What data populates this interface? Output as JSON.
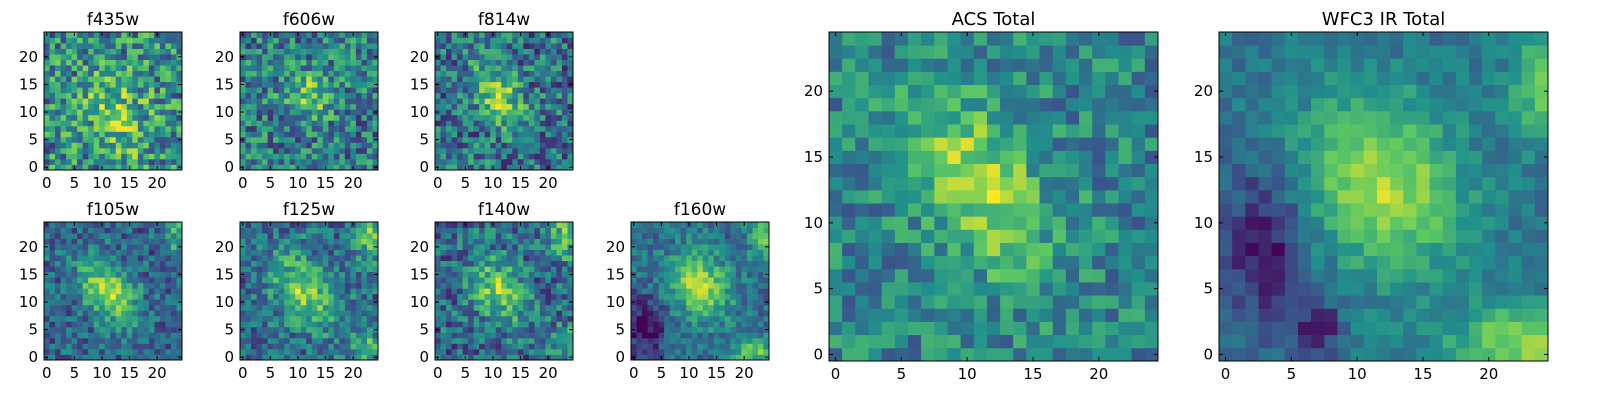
{
  "figure_title": "",
  "colormap": "viridis",
  "colormap_stops": [
    "#440154",
    "#3b528b",
    "#21918c",
    "#5ec962",
    "#fde725"
  ],
  "chart_data": [
    {
      "type": "heatmap",
      "title": "f435w",
      "grid_size": 25,
      "xlim": [
        0,
        24
      ],
      "ylim": [
        0,
        24
      ],
      "xticks": [
        0,
        5,
        10,
        15,
        20
      ],
      "yticks": [
        0,
        5,
        10,
        15,
        20
      ],
      "noise": 0.32,
      "features": [
        {
          "center": [
            12,
            11
          ],
          "sigma": [
            4.5,
            4.5
          ],
          "amp": 0.25
        },
        {
          "center": [
            14,
            4
          ],
          "sigma": [
            3,
            3
          ],
          "amp": 0.15
        }
      ],
      "base": 0.48,
      "xlabel": "",
      "ylabel": ""
    },
    {
      "type": "heatmap",
      "title": "f606w",
      "grid_size": 25,
      "xlim": [
        0,
        24
      ],
      "ylim": [
        0,
        24
      ],
      "xticks": [
        0,
        5,
        10,
        15,
        20
      ],
      "yticks": [
        0,
        5,
        10,
        15,
        20
      ],
      "noise": 0.28,
      "features": [
        {
          "center": [
            12,
            13
          ],
          "sigma": [
            3,
            3
          ],
          "amp": 0.35
        }
      ],
      "base": 0.42,
      "xlabel": "",
      "ylabel": ""
    },
    {
      "type": "heatmap",
      "title": "f814w",
      "grid_size": 25,
      "xlim": [
        0,
        24
      ],
      "ylim": [
        0,
        24
      ],
      "xticks": [
        0,
        5,
        10,
        15,
        20
      ],
      "yticks": [
        0,
        5,
        10,
        15,
        20
      ],
      "noise": 0.28,
      "features": [
        {
          "center": [
            11,
            13
          ],
          "sigma": [
            2.5,
            4.5
          ],
          "amp": 0.45,
          "tilt": 0.5
        }
      ],
      "base": 0.38,
      "xlabel": "",
      "ylabel": ""
    },
    {
      "type": "heatmap",
      "title": "f105w",
      "grid_size": 25,
      "xlim": [
        0,
        24
      ],
      "ylim": [
        0,
        24
      ],
      "xticks": [
        0,
        5,
        10,
        15,
        20
      ],
      "yticks": [
        0,
        5,
        10,
        15,
        20
      ],
      "noise": 0.2,
      "features": [
        {
          "center": [
            11,
            12
          ],
          "sigma": [
            3,
            5
          ],
          "amp": 0.5,
          "tilt": 0.6
        },
        {
          "center": [
            24,
            22
          ],
          "sigma": [
            1.5,
            3
          ],
          "amp": 0.3
        }
      ],
      "base": 0.33,
      "xlabel": "",
      "ylabel": ""
    },
    {
      "type": "heatmap",
      "title": "f125w",
      "grid_size": 25,
      "xlim": [
        0,
        24
      ],
      "ylim": [
        0,
        24
      ],
      "xticks": [
        0,
        5,
        10,
        15,
        20
      ],
      "yticks": [
        0,
        5,
        10,
        15,
        20
      ],
      "noise": 0.22,
      "features": [
        {
          "center": [
            11,
            12
          ],
          "sigma": [
            3.5,
            5
          ],
          "amp": 0.45,
          "tilt": 0.6
        },
        {
          "center": [
            23,
            22
          ],
          "sigma": [
            2,
            3
          ],
          "amp": 0.4
        },
        {
          "center": [
            22,
            2
          ],
          "sigma": [
            2,
            2
          ],
          "amp": 0.35
        }
      ],
      "base": 0.35,
      "xlabel": "",
      "ylabel": ""
    },
    {
      "type": "heatmap",
      "title": "f140w",
      "grid_size": 25,
      "xlim": [
        0,
        24
      ],
      "ylim": [
        0,
        24
      ],
      "xticks": [
        0,
        5,
        10,
        15,
        20
      ],
      "yticks": [
        0,
        5,
        10,
        15,
        20
      ],
      "noise": 0.24,
      "features": [
        {
          "center": [
            11,
            12
          ],
          "sigma": [
            3,
            4.5
          ],
          "amp": 0.45,
          "tilt": 0.5
        },
        {
          "center": [
            23,
            22
          ],
          "sigma": [
            2,
            3
          ],
          "amp": 0.4
        },
        {
          "center": [
            23,
            3
          ],
          "sigma": [
            2,
            2
          ],
          "amp": 0.3
        }
      ],
      "base": 0.34,
      "xlabel": "",
      "ylabel": ""
    },
    {
      "type": "heatmap",
      "title": "f160w",
      "grid_size": 25,
      "xlim": [
        0,
        24
      ],
      "ylim": [
        0,
        24
      ],
      "xticks": [
        0,
        5,
        10,
        15,
        20
      ],
      "yticks": [
        0,
        5,
        10,
        15,
        20
      ],
      "noise": 0.16,
      "features": [
        {
          "center": [
            12,
            13
          ],
          "sigma": [
            3.5,
            4.5
          ],
          "amp": 0.5,
          "tilt": 0.6
        },
        {
          "center": [
            24,
            22
          ],
          "sigma": [
            2,
            3
          ],
          "amp": 0.35
        },
        {
          "center": [
            22,
            1
          ],
          "sigma": [
            3,
            2
          ],
          "amp": 0.35
        },
        {
          "center": [
            2,
            5
          ],
          "sigma": [
            2.5,
            4
          ],
          "amp": -0.35
        }
      ],
      "base": 0.36,
      "xlabel": "",
      "ylabel": ""
    },
    {
      "type": "heatmap",
      "title": "ACS Total",
      "grid_size": 25,
      "xlim": [
        0,
        24
      ],
      "ylim": [
        0,
        24
      ],
      "xticks": [
        0,
        5,
        10,
        15,
        20
      ],
      "yticks": [
        0,
        5,
        10,
        15,
        20
      ],
      "noise": 0.2,
      "features": [
        {
          "center": [
            11,
            13
          ],
          "sigma": [
            3,
            5
          ],
          "amp": 0.42,
          "tilt": 0.5
        }
      ],
      "base": 0.45,
      "xlabel": "",
      "ylabel": ""
    },
    {
      "type": "heatmap",
      "title": "WFC3 IR Total",
      "grid_size": 25,
      "xlim": [
        0,
        24
      ],
      "ylim": [
        0,
        24
      ],
      "xticks": [
        0,
        5,
        10,
        15,
        20
      ],
      "yticks": [
        0,
        5,
        10,
        15,
        20
      ],
      "noise": 0.1,
      "features": [
        {
          "center": [
            12,
            13
          ],
          "sigma": [
            4,
            5
          ],
          "amp": 0.5,
          "tilt": 0.5
        },
        {
          "center": [
            24,
            21
          ],
          "sigma": [
            1.5,
            3
          ],
          "amp": 0.4
        },
        {
          "center": [
            23,
            1
          ],
          "sigma": [
            4,
            2
          ],
          "amp": 0.45
        },
        {
          "center": [
            3,
            8
          ],
          "sigma": [
            2,
            4
          ],
          "amp": -0.35
        },
        {
          "center": [
            7,
            2
          ],
          "sigma": [
            1.2,
            2
          ],
          "amp": -0.3
        }
      ],
      "base": 0.38,
      "xlabel": "",
      "ylabel": ""
    }
  ]
}
